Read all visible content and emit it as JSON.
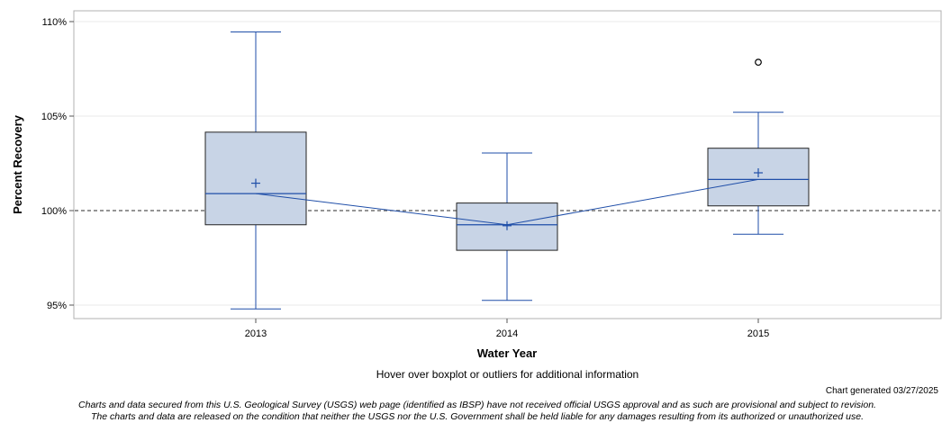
{
  "chart_data": {
    "type": "box",
    "xlabel": "Water Year",
    "ylabel": "Percent Recovery",
    "ylim": [
      94.3,
      110.5
    ],
    "yticks": [
      95,
      100,
      105,
      110
    ],
    "ytick_labels": [
      "95%",
      "100%",
      "105%",
      "110%"
    ],
    "reference_line": 100,
    "grid": true,
    "categories": [
      "2013",
      "2014",
      "2015"
    ],
    "boxes": [
      {
        "category": "2013",
        "whisker_low": 94.8,
        "q1": 99.25,
        "median": 100.9,
        "q3": 104.15,
        "whisker_high": 109.45,
        "mean": 101.45,
        "outliers": []
      },
      {
        "category": "2014",
        "whisker_low": 95.25,
        "q1": 97.9,
        "median": 99.25,
        "q3": 100.4,
        "whisker_high": 103.05,
        "mean": 99.2,
        "outliers": []
      },
      {
        "category": "2015",
        "whisker_low": 98.75,
        "q1": 100.25,
        "median": 101.65,
        "q3": 103.3,
        "whisker_high": 105.2,
        "mean": 102.0,
        "outliers": [
          107.85
        ]
      }
    ],
    "colors": {
      "box_fill": "#c8d4e6",
      "box_stroke": "#222222",
      "whisker": "#1f4ea8",
      "reference": "#555555",
      "grid": "#e8e8e8"
    }
  },
  "footer": {
    "hover_note": "Hover over boxplot or outliers for additional information",
    "generated": "Chart generated 03/27/2025",
    "disclaimer_line1": "Charts and data secured from this U.S. Geological Survey (USGS) web page (identified as IBSP) have not received official USGS approval and as such are provisional and subject to revision.",
    "disclaimer_line2": "The charts and data are released on the condition that neither the USGS nor the U.S. Government shall be held liable for any damages resulting from its authorized or unauthorized use."
  }
}
